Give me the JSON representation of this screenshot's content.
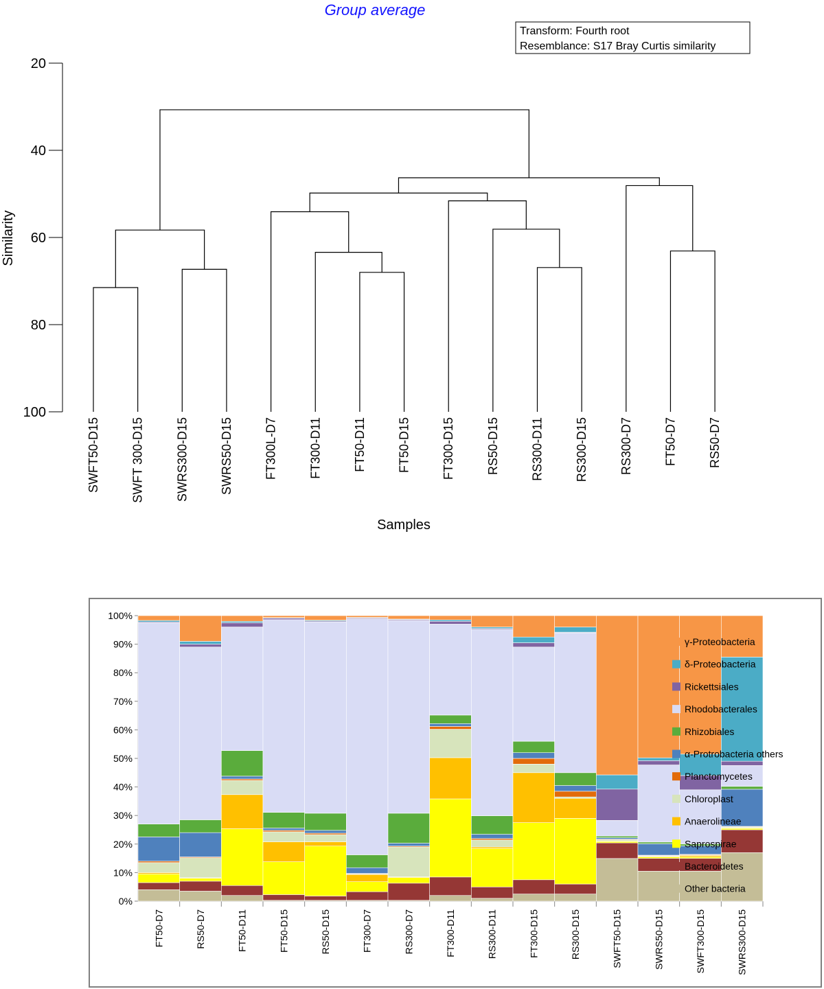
{
  "chart_data": [
    {
      "type": "dendrogram",
      "title": "Group average",
      "info_lines": [
        "Transform: Fourth root",
        "Resemblance: S17 Bray Curtis similarity"
      ],
      "xlabel": "Samples",
      "ylabel": "Similarity",
      "ylim": [
        20,
        100
      ],
      "yticks": [
        20,
        40,
        60,
        80,
        100
      ],
      "leaves": [
        "SWFT50-D15",
        "SWFT 300-D15",
        "SWRS300-D15",
        "SWRS50-D15",
        "FT300L-D7",
        "FT300-D11",
        "FT50-D11",
        "FT50-D15",
        "FT300-D15",
        "RS50-D15",
        "RS300-D11",
        "RS300-D15",
        "RS300-D7",
        "FT50-D7",
        "RS50-D7"
      ],
      "merges": [
        {
          "left": "L:SWFT50-D15",
          "right": "L:SWFT 300-D15",
          "similarity": 71.5
        },
        {
          "left": "L:SWRS300-D15",
          "right": "L:SWRS50-D15",
          "similarity": 67.3
        },
        {
          "left": "M:0",
          "right": "M:1",
          "similarity": 58.3
        },
        {
          "left": "L:FT50-D11",
          "right": "L:FT50-D15",
          "similarity": 68.0
        },
        {
          "left": "L:FT300-D11",
          "right": "M:3",
          "similarity": 63.4
        },
        {
          "left": "L:FT300L-D7",
          "right": "M:4",
          "similarity": 54.1
        },
        {
          "left": "L:RS300-D11",
          "right": "L:RS300-D15",
          "similarity": 66.9
        },
        {
          "left": "L:RS50-D15",
          "right": "M:6",
          "similarity": 58.1
        },
        {
          "left": "L:FT300-D15",
          "right": "M:7",
          "similarity": 51.6
        },
        {
          "left": "M:5",
          "right": "M:8",
          "similarity": 49.8
        },
        {
          "left": "L:FT50-D7",
          "right": "L:RS50-D7",
          "similarity": 63.1
        },
        {
          "left": "L:RS300-D7",
          "right": "M:10",
          "similarity": 48.1
        },
        {
          "left": "M:9",
          "right": "M:11",
          "similarity": 46.3
        },
        {
          "left": "M:2",
          "right": "M:12",
          "similarity": 30.7
        }
      ]
    },
    {
      "type": "bar",
      "stacked": true,
      "percent": true,
      "ylim": [
        0,
        100
      ],
      "yticks": [
        "0%",
        "10%",
        "20%",
        "30%",
        "40%",
        "50%",
        "60%",
        "70%",
        "80%",
        "90%",
        "100%"
      ],
      "categories": [
        "FT50-D7",
        "RS50-D7",
        "FT50-D11",
        "FT50-D15",
        "RS50-D15",
        "FT300-D7",
        "RS300-D7",
        "FT300-D11",
        "RS300-D11",
        "FT300-D15",
        "RS300-D15",
        "SWFT50-D15",
        "SWRS50-D15",
        "SWFT300-D15",
        "SWRS300-D15"
      ],
      "series": [
        {
          "name": "Other bacteria",
          "color": "#c4bd97",
          "values": [
            4,
            3.5,
            2,
            0.3,
            0.3,
            0.3,
            0.3,
            2,
            1,
            2.5,
            2.5,
            15,
            10.5,
            10.5,
            17
          ]
        },
        {
          "name": "Bacteroidetes",
          "color": "#953735",
          "values": [
            2.5,
            3.5,
            3.5,
            2,
            1.5,
            3,
            6,
            6.5,
            4,
            5,
            3.5,
            5.5,
            4.5,
            4.5,
            8
          ]
        },
        {
          "name": "Saprospirae",
          "color": "#ffff00",
          "values": [
            3,
            1,
            20,
            11.5,
            17.5,
            3.5,
            2,
            27.5,
            13.5,
            20,
            23,
            0.5,
            0.5,
            0.5,
            0.5
          ]
        },
        {
          "name": "Anaerolineae",
          "color": "#ffc000",
          "values": [
            0.5,
            0.2,
            12,
            7,
            1.5,
            2.5,
            0.2,
            14.5,
            0.5,
            17.5,
            7,
            0.1,
            0.2,
            0.5,
            0.2
          ]
        },
        {
          "name": "Chloroplast",
          "color": "#d7e4bc",
          "values": [
            3.5,
            7,
            5,
            3.5,
            2.5,
            0.2,
            10.5,
            10,
            2.5,
            3,
            0.5,
            0.5,
            0.2,
            0.2,
            0.3
          ]
        },
        {
          "name": "Planctomycetes",
          "color": "#e26b0a",
          "values": [
            0.5,
            0.3,
            0.5,
            0.5,
            0.5,
            0.2,
            0.3,
            1,
            0.5,
            2,
            2,
            0.2,
            0.2,
            0.2,
            0.2
          ]
        },
        {
          "name": "α-Protrobacteria others",
          "color": "#4f81bd",
          "values": [
            8.5,
            8.5,
            1,
            0.8,
            1,
            2,
            1,
            1,
            1.5,
            2,
            2,
            0.5,
            4,
            3,
            13
          ]
        },
        {
          "name": "Rhizobiales",
          "color": "#5aac3c",
          "values": [
            4.5,
            4.5,
            9,
            5.5,
            6,
            4.5,
            10.5,
            3,
            6.5,
            4,
            4.5,
            0.6,
            0.6,
            0.6,
            1
          ]
        },
        {
          "name": "Rhodobacterales",
          "color": "#d9dcf5",
          "values": [
            70.5,
            60.5,
            43.5,
            67.5,
            67,
            82.5,
            67.5,
            32,
            65.5,
            33,
            49,
            5.5,
            27,
            19,
            7.3
          ]
        },
        {
          "name": "Rickettsiales",
          "color": "#8064a2",
          "values": [
            0.3,
            1,
            1.5,
            0.5,
            0.3,
            0.3,
            0.3,
            1,
            0.3,
            1.5,
            0.2,
            11,
            1.5,
            5,
            1.5
          ]
        },
        {
          "name": "δ-Proteobacteria",
          "color": "#4bacc6",
          "values": [
            0.5,
            1,
            0.5,
            0.2,
            0.3,
            0.2,
            0.2,
            0.5,
            0.5,
            2,
            1.8,
            5,
            1,
            7.5,
            36.5
          ]
        },
        {
          "name": "γ-Proteobacteria",
          "color": "#f79646",
          "values": [
            1.7,
            9,
            2,
            0.7,
            1.6,
            0.6,
            1.2,
            1.5,
            4,
            7.5,
            4,
            56,
            49.8,
            48.5,
            14.5
          ]
        }
      ],
      "legend_order": [
        "γ-Proteobacteria",
        "δ-Proteobacteria",
        "Rickettsiales",
        "Rhodobacterales",
        "Rhizobiales",
        "α-Protrobacteria others",
        "Planctomycetes",
        "Chloroplast",
        "Anaerolineae",
        "Saprospirae",
        "Bacteroidetes",
        "Other bacteria"
      ]
    }
  ]
}
